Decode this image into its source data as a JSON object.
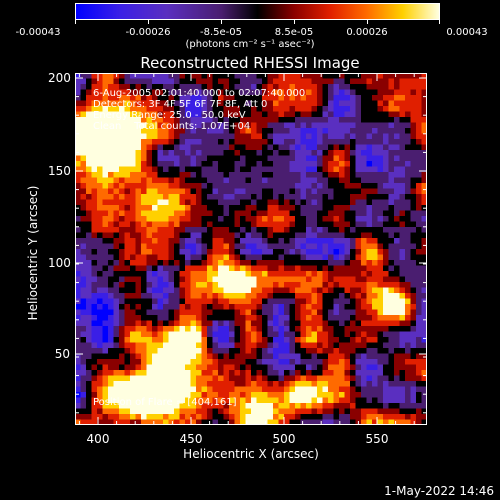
{
  "colorbar": {
    "ticks": [
      "-0.00043",
      "-0.00026",
      "-8.5e-05",
      "8.5e-05",
      "0.00026",
      "0.00043"
    ],
    "units": "(photons cm⁻² s⁻¹ asec⁻²)"
  },
  "title": "Reconstructed RHESSI Image",
  "info": {
    "time": "6-Aug-2005 02:01:40.000 to 02:07:40.000",
    "detectors": "Detectors: 3F 4F 5F 6F 7F 8F, Att 0",
    "energy": "Energy Range: 25.0 - 50.0 keV",
    "clean": "Clean    Total counts: 1.07E+04"
  },
  "flare_position": "Position of Flare = [404,161]",
  "axes": {
    "xlabel": "Heliocentric X (arcsec)",
    "ylabel": "Heliocentric Y (arcsec)",
    "xticks": [
      "400",
      "450",
      "500",
      "550"
    ],
    "yticks": [
      "200",
      "150",
      "100",
      "50"
    ]
  },
  "colormap": [
    "#0000ff",
    "#3a1fe6",
    "#5a2fc0",
    "#4a1e70",
    "#000000",
    "#8a0000",
    "#e01f00",
    "#ff6a00",
    "#ffd000",
    "#ffffe0"
  ],
  "footer": {
    "timestamp": "1-May-2022 14:46"
  }
}
